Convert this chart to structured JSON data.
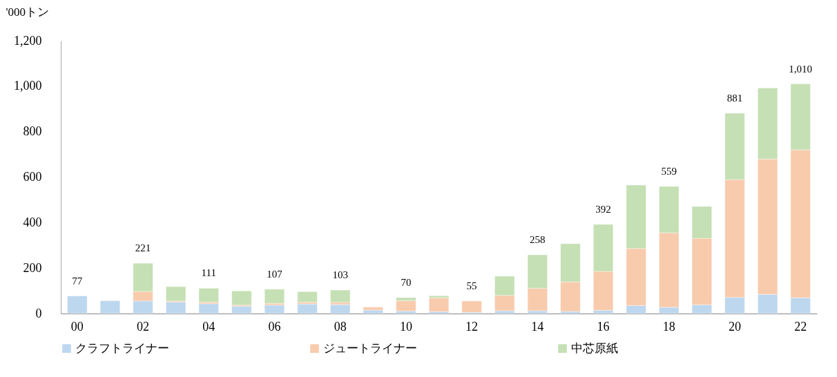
{
  "chart_data": {
    "type": "bar",
    "stacked": true,
    "ylabel": "'000トン",
    "categories": [
      "00",
      null,
      "02",
      null,
      "04",
      null,
      "06",
      null,
      "08",
      null,
      "10",
      null,
      "12",
      null,
      "14",
      null,
      "16",
      null,
      "18",
      null,
      "20",
      null,
      "22"
    ],
    "series": [
      {
        "name": "クラフトライナー",
        "color": "#bdd7ee",
        "values": [
          77,
          56,
          55,
          50,
          43,
          32,
          37,
          42,
          39,
          15,
          11,
          8,
          5,
          12,
          12,
          9,
          14,
          35,
          27,
          38,
          71,
          84,
          69
        ]
      },
      {
        "name": "ジュートライナー",
        "color": "#f8cbad",
        "values": [
          0,
          0,
          42,
          5,
          7,
          5,
          8,
          8,
          10,
          13,
          45,
          61,
          50,
          68,
          99,
          130,
          171,
          251,
          328,
          293,
          518,
          596,
          651
        ]
      },
      {
        "name": "中芯原紙",
        "color": "#c5e0b4",
        "values": [
          0,
          0,
          124,
          63,
          61,
          62,
          62,
          46,
          54,
          0,
          14,
          9,
          0,
          84,
          147,
          168,
          207,
          279,
          204,
          140,
          292,
          312,
          290
        ]
      }
    ],
    "totals": [
      "77",
      null,
      "221",
      null,
      "111",
      null,
      "107",
      null,
      "103",
      null,
      "70",
      null,
      "55",
      null,
      "258",
      null,
      "392",
      null,
      "559",
      null,
      "881",
      null,
      "1,010"
    ],
    "ylim": [
      0,
      1200
    ],
    "yticks": [
      0,
      200,
      400,
      600,
      800,
      {
        "value": 1000,
        "label": "1,000"
      },
      {
        "value": 1200,
        "label": "1,200"
      }
    ],
    "grid": false,
    "legend": "bottom"
  }
}
